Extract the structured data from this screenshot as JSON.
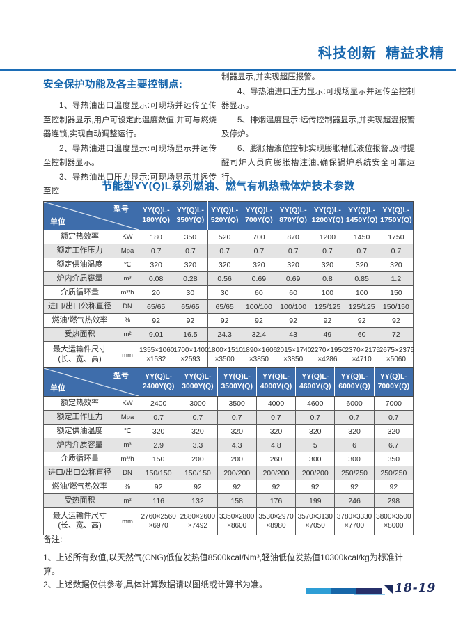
{
  "header": {
    "slogan": "科技创新  精益求精"
  },
  "safety": {
    "title": "安全保护功能及各主要控制点:",
    "left_paragraphs": [
      {
        "indent": true,
        "text": "1、导热油出口温度显示:可现场并远传至传至控制器显示,用户可设定此温度数值,并可与燃烧器连锁,实现自动调整运行。"
      },
      {
        "indent": true,
        "text": "2、导热油进口温度显示:可现场显示并远传至控制器显示。"
      },
      {
        "indent": true,
        "text": "3、导热油出口压力显示:可现场显示并远传至控"
      }
    ],
    "right_paragraphs": [
      {
        "indent": false,
        "text": "制器显示,并实现超压报警。"
      },
      {
        "indent": true,
        "text": "4、导热油进口压力显示:可现场显示并远传至控制器显示。"
      },
      {
        "indent": true,
        "text": "5、排烟温度显示:远传控制器显示,并实现超温报警及停炉。"
      },
      {
        "indent": true,
        "text": "6、膨胀槽液位控制:实现膨胀槽低液位报警,及时提醒司炉人员向膨胀槽注油,确保锅炉系统安全可靠运行。"
      }
    ]
  },
  "table_title": "节能型YY(Q)L系列燃油、燃气有机热载体炉技术参数",
  "corner": {
    "model_label": "型号",
    "unit_label": "单位"
  },
  "tables": [
    {
      "models": [
        "YY(Q)L-\n180Y(Q)",
        "YY(Q)L-\n350Y(Q)",
        "YY(Q)L-\n520Y(Q)",
        "YY(Q)L-\n700Y(Q)",
        "YY(Q)L-\n870Y(Q)",
        "YY(Q)L-\n1200Y(Q)",
        "YY(Q)L-\n1450Y(Q)",
        "YY(Q)L-\n1750Y(Q)"
      ],
      "rows": [
        {
          "label": "额定热效率",
          "unit": "KW",
          "values": [
            "180",
            "350",
            "520",
            "700",
            "870",
            "1200",
            "1450",
            "1750"
          ]
        },
        {
          "label": "额定工作压力",
          "unit": "Mpa",
          "values": [
            "0.7",
            "0.7",
            "0.7",
            "0.7",
            "0.7",
            "0.7",
            "0.7",
            "0.7"
          ]
        },
        {
          "label": "额定供油温度",
          "unit": "℃",
          "values": [
            "320",
            "320",
            "320",
            "320",
            "320",
            "320",
            "320",
            "320"
          ]
        },
        {
          "label": "炉内介质容量",
          "unit": "m³",
          "values": [
            "0.08",
            "0.28",
            "0.56",
            "0.69",
            "0.69",
            "0.8",
            "0.85",
            "1.2"
          ]
        },
        {
          "label": "介质循环量",
          "unit": "m³/h",
          "values": [
            "20",
            "30",
            "30",
            "60",
            "60",
            "100",
            "100",
            "150"
          ]
        },
        {
          "label": "进口/出口公称直径",
          "unit": "DN",
          "values": [
            "65/65",
            "65/65",
            "65/65",
            "100/100",
            "100/100",
            "125/125",
            "125/125",
            "150/150"
          ]
        },
        {
          "label": "燃油/燃气热效率",
          "unit": "%",
          "values": [
            "92",
            "92",
            "92",
            "92",
            "92",
            "92",
            "92",
            "92"
          ]
        },
        {
          "label": "受热面积",
          "unit": "m²",
          "values": [
            "9.01",
            "16.5",
            "24.3",
            "32.4",
            "43",
            "49",
            "60",
            "72"
          ]
        },
        {
          "label": "最大运输件尺寸\n(长、宽、高)",
          "unit": "mm",
          "values": [
            "1355×1060\n×1532",
            "1700×1400\n×2593",
            "1800×1510\n×3500",
            "1890×1606\n×3850",
            "2015×1740\n×3850",
            "2270×1950\n×4286",
            "2370×2175\n×4710",
            "2675×2375\n×5060"
          ]
        }
      ]
    },
    {
      "models": [
        "YY(Q)L-\n2400Y(Q)",
        "YY(Q)L-\n3000Y(Q)",
        "YY(Q)L-\n3500Y(Q)",
        "YY(Q)L-\n4000Y(Q)",
        "YY(Q)L-\n4600Y(Q)",
        "YY(Q)L-\n6000Y(Q)",
        "YY(Q)L-\n7000Y(Q)"
      ],
      "rows": [
        {
          "label": "额定热效率",
          "unit": "KW",
          "values": [
            "2400",
            "3000",
            "3500",
            "4000",
            "4600",
            "6000",
            "7000"
          ]
        },
        {
          "label": "额定工作压力",
          "unit": "Mpa",
          "values": [
            "0.7",
            "0.7",
            "0.7",
            "0.7",
            "0.7",
            "0.7",
            "0.7"
          ]
        },
        {
          "label": "额定供油温度",
          "unit": "℃",
          "values": [
            "320",
            "320",
            "320",
            "320",
            "320",
            "320",
            "320"
          ]
        },
        {
          "label": "炉内介质容量",
          "unit": "m³",
          "values": [
            "2.9",
            "3.3",
            "4.3",
            "4.8",
            "5",
            "6",
            "6.7"
          ]
        },
        {
          "label": "介质循环量",
          "unit": "m³/h",
          "values": [
            "150",
            "200",
            "200",
            "260",
            "300",
            "300",
            "350"
          ]
        },
        {
          "label": "进口/出口公称直径",
          "unit": "DN",
          "values": [
            "150/150",
            "150/150",
            "200/200",
            "200/200",
            "200/200",
            "250/250",
            "250/250"
          ]
        },
        {
          "label": "燃油/燃气热效率",
          "unit": "%",
          "values": [
            "92",
            "92",
            "92",
            "92",
            "92",
            "92",
            "92"
          ]
        },
        {
          "label": "受热面积",
          "unit": "m²",
          "values": [
            "116",
            "132",
            "158",
            "176",
            "199",
            "246",
            "298"
          ]
        },
        {
          "label": "最大运输件尺寸\n(长、宽、高)",
          "unit": "mm",
          "values": [
            "2760×2560\n×6970",
            "2880×2600\n×7492",
            "3350×2800\n×8600",
            "3530×2970\n×8980",
            "3570×3130\n×7050",
            "3780×3330\n×7700",
            "3800×3500\n×8000"
          ]
        }
      ]
    }
  ],
  "notes": {
    "title": "备注:",
    "items": [
      "1、上述所有数值,以天然气(CNG)低位发热值8500kcal/Nm³,轻油低位发热值10300kcal/kg为标准计算。",
      "2、上述数据仅供参考,具体计算数据请以图纸或计算书为准。"
    ]
  },
  "footer": {
    "bar_segments": [
      "#2e9ed6",
      "#1767a9",
      "#27306b"
    ],
    "page_number": "18-19"
  },
  "colors": {
    "accent": "#1766ad",
    "rule": "#1c6db6",
    "table-header-bg": "#3e6dab",
    "alt-row": "#e4e4e4",
    "grid": "#5a5a5a",
    "text": "#333333",
    "page-number": "#1c2a5e"
  }
}
